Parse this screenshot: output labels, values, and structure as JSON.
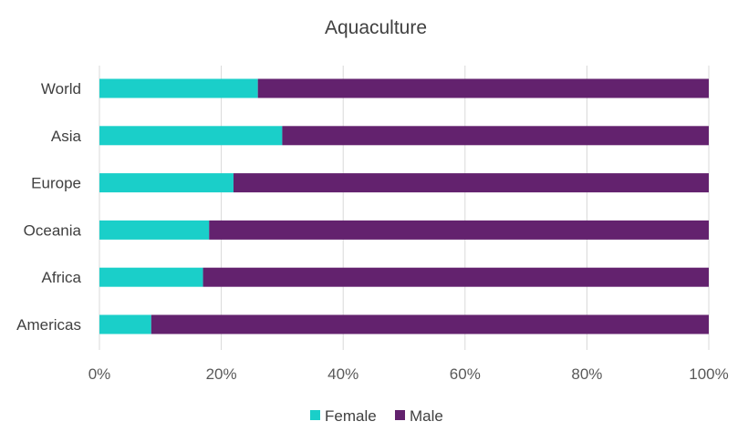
{
  "chart_data": {
    "type": "bar",
    "orientation": "horizontal",
    "stacked": "percent",
    "title": "Aquaculture",
    "categories": [
      "World",
      "Asia",
      "Europe",
      "Oceania",
      "Africa",
      "Americas"
    ],
    "series": [
      {
        "name": "Female",
        "color": "#1acfc9",
        "values": [
          26,
          30,
          22,
          18,
          17,
          8.5
        ]
      },
      {
        "name": "Male",
        "color": "#63226e",
        "values": [
          74,
          70,
          78,
          82,
          83,
          91.5
        ]
      }
    ],
    "xlim": [
      0,
      100
    ],
    "x_ticks": [
      "0%",
      "20%",
      "40%",
      "60%",
      "80%",
      "100%"
    ],
    "grid": true,
    "legend_position": "bottom"
  }
}
